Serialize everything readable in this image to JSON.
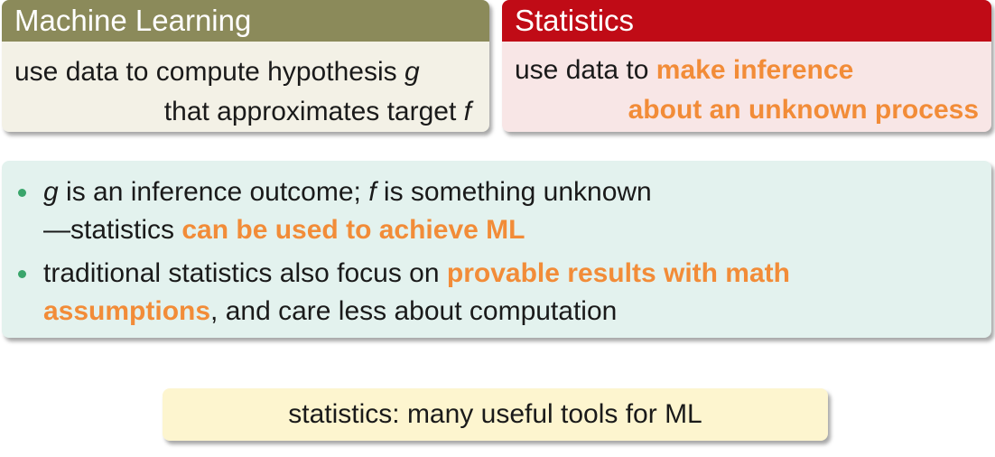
{
  "ml_box": {
    "title": "Machine Learning",
    "line1_pre": "use data to compute hypothesis ",
    "line1_var": "g",
    "line2_pre": "that approximates target ",
    "line2_var": "f"
  },
  "stat_box": {
    "title": "Statistics",
    "line1_pre": "use data to ",
    "line1_hl": "make inference",
    "line2_hl": "about an unknown process"
  },
  "bullets": [
    {
      "var_g": "g",
      "text_a": " is an inference outcome; ",
      "var_f": "f",
      "text_b": " is something unknown",
      "line2_pre": "—statistics ",
      "line2_hl": "can be used to achieve ML"
    },
    {
      "text_pre": "traditional statistics also focus on ",
      "hl_a": "provable results with math",
      "hl_b": "assumptions",
      "text_post": ", and care less about computation"
    }
  ],
  "note": {
    "text": "statistics: many useful tools for ML"
  },
  "colors": {
    "ml_header": "#8b8a5a",
    "stat_header": "#c00b16",
    "highlight": "#f28c38",
    "bullet": "#3aa56b"
  }
}
